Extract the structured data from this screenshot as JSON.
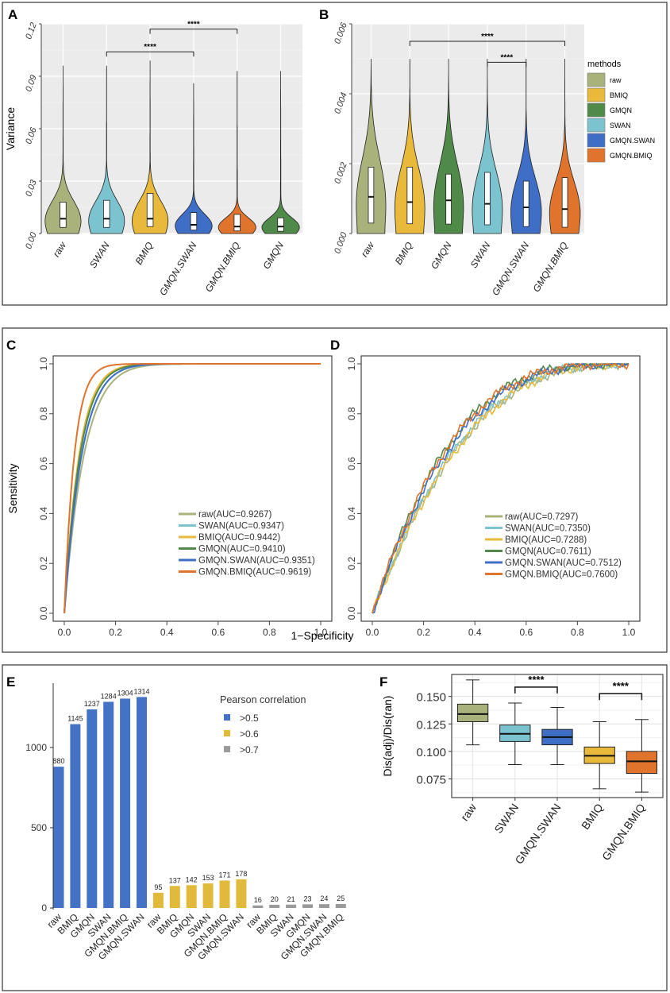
{
  "colors": {
    "raw": "#a8b27a",
    "BMIQ": "#e8b93a",
    "GMQN": "#4f8a48",
    "SWAN": "#7cc3d0",
    "GMQN.SWAN": "#3f6ec6",
    "GMQN.BMIQ": "#e0742c",
    "bar_blue": "#4472c4",
    "bar_yellow": "#e1b93b",
    "bar_gray": "#9a9a9a",
    "panel_bg": "#ebebeb",
    "frame": "#333333"
  },
  "chart_data": [
    {
      "panel": "A",
      "type": "violin",
      "ylabel": "Variance",
      "ylim": [
        0,
        0.12
      ],
      "yticks": [
        "0.00",
        "0.03",
        "0.06",
        "0.09",
        "0.12"
      ],
      "ytick_values": [
        0,
        0.03,
        0.06,
        0.09,
        0.12
      ],
      "categories": [
        "raw",
        "SWAN",
        "BMIQ",
        "GMQN.SWAN",
        "GMQN.BMIQ",
        "GMQN"
      ],
      "color_keys": [
        "raw",
        "SWAN",
        "BMIQ",
        "GMQN.SWAN",
        "GMQN.BMIQ",
        "GMQN"
      ],
      "max": [
        0.096,
        0.096,
        0.099,
        0.086,
        0.093,
        0.093
      ],
      "q1": [
        0.0035,
        0.0035,
        0.004,
        0.002,
        0.0015,
        0.0013
      ],
      "median": [
        0.0085,
        0.0085,
        0.0085,
        0.005,
        0.004,
        0.004
      ],
      "q3": [
        0.018,
        0.019,
        0.023,
        0.012,
        0.011,
        0.009
      ],
      "brackets": [
        {
          "from": "SWAN",
          "to": "GMQN.SWAN",
          "y": 0.104,
          "label": "****"
        },
        {
          "from": "BMIQ",
          "to": "GMQN.BMIQ",
          "y": 0.117,
          "label": "****"
        }
      ]
    },
    {
      "panel": "B",
      "type": "violin",
      "ylabel": "",
      "ylim": [
        0,
        0.006
      ],
      "yticks": [
        "0.000",
        "0.002",
        "0.004",
        "0.006"
      ],
      "ytick_values": [
        0,
        0.002,
        0.004,
        0.006
      ],
      "categories": [
        "raw",
        "BMIQ",
        "GMQN",
        "SWAN",
        "GMQN.SWAN",
        "GMQN.BMIQ"
      ],
      "color_keys": [
        "raw",
        "BMIQ",
        "GMQN",
        "SWAN",
        "GMQN.SWAN",
        "GMQN.BMIQ"
      ],
      "max": [
        0.005,
        0.005,
        0.005,
        0.005,
        0.005,
        0.005
      ],
      "q1": [
        0.0003,
        0.00028,
        0.00027,
        0.00025,
        0.0002,
        0.00018
      ],
      "median": [
        0.00105,
        0.0009,
        0.00095,
        0.00085,
        0.00075,
        0.0007
      ],
      "q3": [
        0.0019,
        0.0019,
        0.0017,
        0.00175,
        0.0015,
        0.0016
      ],
      "legend_title": "methods",
      "legend": [
        "raw",
        "BMIQ",
        "GMQN",
        "SWAN",
        "GMQN.SWAN",
        "GMQN.BMIQ"
      ],
      "brackets": [
        {
          "from": "BMIQ",
          "to": "GMQN.BMIQ",
          "y": 0.0055,
          "label": "****"
        },
        {
          "from": "SWAN",
          "to": "GMQN.SWAN",
          "y": 0.0049,
          "label": "****"
        }
      ]
    },
    {
      "panel": "C",
      "type": "line",
      "ylabel": "Sensitivity",
      "xlabel": "1−Specificity",
      "xlim": [
        0,
        1
      ],
      "ylim": [
        0,
        1
      ],
      "ticks": [
        "0.0",
        "0.2",
        "0.4",
        "0.6",
        "0.8",
        "1.0"
      ],
      "series": [
        {
          "name": "raw",
          "label": "raw(AUC=0.9267)",
          "auc": 0.9267
        },
        {
          "name": "SWAN",
          "label": "SWAN(AUC=0.9347)",
          "auc": 0.9347
        },
        {
          "name": "BMIQ",
          "label": "BMIQ(AUC=0.9442)",
          "auc": 0.9442
        },
        {
          "name": "GMQN",
          "label": "GMQN(AUC=0.9410)",
          "auc": 0.941
        },
        {
          "name": "GMQN.SWAN",
          "label": "GMQN.SWAN(AUC=0.9351)",
          "auc": 0.9351
        },
        {
          "name": "GMQN.BMIQ",
          "label": "GMQN.BMIQ(AUC=0.9619)",
          "auc": 0.9619
        }
      ]
    },
    {
      "panel": "D",
      "type": "line",
      "ylabel": "",
      "xlabel": "",
      "xlim": [
        0,
        1
      ],
      "ylim": [
        0,
        1
      ],
      "ticks": [
        "0.0",
        "0.2",
        "0.4",
        "0.6",
        "0.8",
        "1.0"
      ],
      "series": [
        {
          "name": "raw",
          "label": "raw(AUC=0.7297)",
          "auc": 0.7297
        },
        {
          "name": "SWAN",
          "label": "SWAN(AUC=0.7350)",
          "auc": 0.735
        },
        {
          "name": "BMIQ",
          "label": "BMIQ(AUC=0.7288)",
          "auc": 0.7288
        },
        {
          "name": "GMQN",
          "label": "GMQN(AUC=0.7611)",
          "auc": 0.7611
        },
        {
          "name": "GMQN.SWAN",
          "label": "GMQN.SWAN(AUC=0.7512)",
          "auc": 0.7512
        },
        {
          "name": "GMQN.BMIQ",
          "label": "GMQN.BMIQ(AUC=0.7600)",
          "auc": 0.76
        }
      ]
    },
    {
      "panel": "E",
      "type": "bar",
      "ylim": [
        0,
        1400
      ],
      "yticks": [
        "0",
        "500",
        "1000"
      ],
      "ytick_values": [
        0,
        500,
        1000
      ],
      "legend_title": "Pearson correlation",
      "groups": [
        {
          "label": ">0.5",
          "color_key": "bar_blue",
          "categories": [
            "raw",
            "BMIQ",
            "GMQN",
            "SWAN",
            "GMQN.BMIQ",
            "GMQN.SWAN"
          ],
          "values": [
            880,
            1145,
            1237,
            1284,
            1304,
            1314
          ]
        },
        {
          "label": ">0.6",
          "color_key": "bar_yellow",
          "categories": [
            "raw",
            "BMIQ",
            "GMQN",
            "SWAN",
            "GMQN.BMIQ",
            "GMQN.SWAN"
          ],
          "values": [
            95,
            137,
            142,
            153,
            171,
            178
          ]
        },
        {
          "label": ">0.7",
          "color_key": "bar_gray",
          "categories": [
            "raw",
            "BMIQ",
            "SWAN",
            "GMQN",
            "GMQN.SWAN",
            "GMQN.BMIQ"
          ],
          "values": [
            16,
            20,
            21,
            23,
            24,
            25
          ]
        }
      ]
    },
    {
      "panel": "F",
      "type": "box",
      "ylabel": "Dis(adj)/Dis(ran)",
      "ylim": [
        0.058,
        0.17
      ],
      "yticks": [
        "0.075",
        "0.100",
        "0.125",
        "0.150"
      ],
      "ytick_values": [
        0.075,
        0.1,
        0.125,
        0.15
      ],
      "categories": [
        "raw",
        "SWAN",
        "GMQN.SWAN",
        "BMIQ",
        "GMQN.BMIQ"
      ],
      "color_keys": [
        "raw",
        "SWAN",
        "GMQN.SWAN",
        "BMIQ",
        "GMQN.BMIQ"
      ],
      "min": [
        0.106,
        0.088,
        0.088,
        0.066,
        0.063
      ],
      "q1": [
        0.127,
        0.109,
        0.106,
        0.089,
        0.08
      ],
      "median": [
        0.134,
        0.116,
        0.113,
        0.096,
        0.091
      ],
      "q3": [
        0.143,
        0.124,
        0.12,
        0.104,
        0.1
      ],
      "max": [
        0.165,
        0.144,
        0.14,
        0.127,
        0.129
      ],
      "brackets": [
        {
          "from": "SWAN",
          "to": "GMQN.SWAN",
          "y": 0.1585,
          "label": "****"
        },
        {
          "from": "BMIQ",
          "to": "GMQN.BMIQ",
          "y": 0.1525,
          "label": "****"
        }
      ]
    }
  ]
}
